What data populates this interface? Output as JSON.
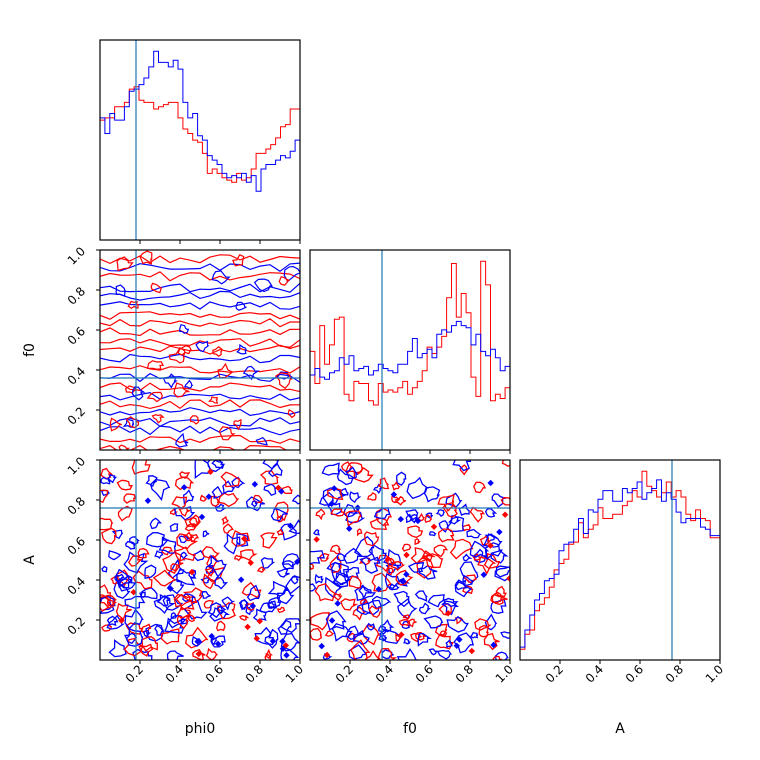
{
  "chart_data": {
    "type": "corner",
    "parameters": [
      "phi0",
      "f0",
      "A"
    ],
    "axis_labels": {
      "phi0": "phi0",
      "f0": "f0",
      "A": "A"
    },
    "ranges": {
      "phi0": [
        0,
        1
      ],
      "f0": [
        0,
        1
      ],
      "A": [
        0,
        1
      ]
    },
    "ticks": [
      "0.2",
      "0.4",
      "0.6",
      "0.8",
      "1.0"
    ],
    "truth": {
      "phi0": 0.18,
      "f0": 0.36,
      "A": 0.76
    },
    "colors": {
      "series_red": "#ff0000",
      "series_blue": "#0000ff",
      "truth": "#1f77b4"
    },
    "histograms": {
      "phi0": {
        "red": [
          0.54,
          0.55,
          0.55,
          0.6,
          0.6,
          0.62,
          0.68,
          0.69,
          0.63,
          0.62,
          0.62,
          0.59,
          0.6,
          0.61,
          0.62,
          0.62,
          0.55,
          0.5,
          0.48,
          0.45,
          0.44,
          0.39,
          0.3,
          0.32,
          0.3,
          0.28,
          0.27,
          0.26,
          0.3,
          0.27,
          0.28,
          0.32,
          0.39,
          0.39,
          0.41,
          0.43,
          0.46,
          0.51,
          0.52,
          0.59,
          0.59
        ],
        "blue": [
          0.55,
          0.48,
          0.57,
          0.54,
          0.54,
          0.6,
          0.67,
          0.68,
          0.7,
          0.73,
          0.78,
          0.85,
          0.8,
          0.8,
          0.78,
          0.81,
          0.77,
          0.62,
          0.55,
          0.57,
          0.47,
          0.45,
          0.38,
          0.36,
          0.34,
          0.3,
          0.28,
          0.29,
          0.28,
          0.3,
          0.26,
          0.29,
          0.22,
          0.32,
          0.34,
          0.34,
          0.36,
          0.38,
          0.37,
          0.4,
          0.45
        ]
      },
      "f0": {
        "red": [
          0.46,
          0.31,
          0.58,
          0.4,
          0.49,
          0.61,
          0.62,
          0.26,
          0.23,
          0.32,
          0.31,
          0.31,
          0.23,
          0.21,
          0.31,
          0.27,
          0.28,
          0.27,
          0.29,
          0.32,
          0.26,
          0.29,
          0.32,
          0.37,
          0.48,
          0.45,
          0.48,
          0.53,
          0.71,
          0.87,
          0.62,
          0.73,
          0.64,
          0.34,
          0.25,
          0.88,
          0.77,
          0.23,
          0.26,
          0.24,
          0.29
        ],
        "blue": [
          0.35,
          0.38,
          0.34,
          0.33,
          0.36,
          0.37,
          0.43,
          0.4,
          0.44,
          0.37,
          0.38,
          0.39,
          0.35,
          0.37,
          0.4,
          0.38,
          0.37,
          0.36,
          0.4,
          0.4,
          0.46,
          0.52,
          0.43,
          0.45,
          0.47,
          0.43,
          0.54,
          0.56,
          0.55,
          0.58,
          0.6,
          0.58,
          0.57,
          0.49,
          0.54,
          0.46,
          0.44,
          0.47,
          0.43,
          0.37,
          0.39
        ]
      },
      "A": {
        "red": [
          0.05,
          0.12,
          0.14,
          0.23,
          0.26,
          0.29,
          0.34,
          0.42,
          0.45,
          0.47,
          0.54,
          0.55,
          0.64,
          0.57,
          0.61,
          0.63,
          0.71,
          0.66,
          0.66,
          0.68,
          0.68,
          0.72,
          0.74,
          0.79,
          0.76,
          0.88,
          0.81,
          0.79,
          0.76,
          0.78,
          0.83,
          0.76,
          0.79,
          0.76,
          0.68,
          0.65,
          0.7,
          0.66,
          0.65,
          0.57,
          0.57
        ],
        "blue": [
          0.06,
          0.14,
          0.21,
          0.28,
          0.31,
          0.37,
          0.38,
          0.4,
          0.51,
          0.54,
          0.55,
          0.61,
          0.66,
          0.59,
          0.7,
          0.69,
          0.75,
          0.79,
          0.79,
          0.74,
          0.74,
          0.8,
          0.78,
          0.8,
          0.83,
          0.75,
          0.78,
          0.8,
          0.84,
          0.74,
          0.78,
          0.75,
          0.69,
          0.64,
          0.66,
          0.66,
          0.66,
          0.62,
          0.61,
          0.58,
          0.58
        ]
      }
    }
  }
}
